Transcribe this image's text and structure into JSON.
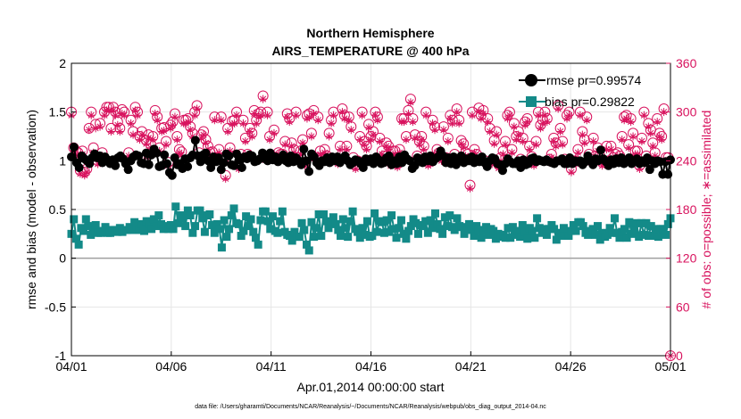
{
  "chart_data": {
    "type": "line",
    "title": "Northern Hemisphere",
    "subtitle": "AIRS_TEMPERATURE @ 400 hPa",
    "xlabel": "Apr.01,2014 00:00:00 start",
    "ylabel_left": "rmse and bias (model - observation)",
    "ylabel_right": "# of obs: o=possible; ∗=assimilated",
    "footnote": "data file: /Users/gharamti/Documents/NCAR/Reanalysis/~/Documents/NCAR/Reanalysis/webpub/obs_diag_output_2014-04.nc",
    "x_ticks": [
      "04/01",
      "04/06",
      "04/11",
      "04/16",
      "04/21",
      "04/26",
      "05/01"
    ],
    "xlim_days": [
      0,
      30
    ],
    "ylim_left": [
      -1,
      2
    ],
    "y_ticks_left": [
      "-1",
      "-0.5",
      "0",
      "0.5",
      "1",
      "1.5",
      "2"
    ],
    "ylim_right": [
      0,
      360
    ],
    "y_ticks_right": [
      "0",
      "60",
      "120",
      "180",
      "240",
      "300",
      "360"
    ],
    "grid": true,
    "legend_position": "top-right",
    "colors": {
      "rmse": "#000000",
      "bias": "#138a88",
      "obs": "#d8135e",
      "zero_line": "#a0a0a0"
    },
    "series": [
      {
        "name": "rmse pr=0.99574",
        "axis": "left",
        "marker": "filled-circle",
        "values": [
          1.04,
          1.14,
          0.98,
          0.93,
          1.05,
          1.02,
          1.0,
          0.97,
          1.03,
          1.07,
          1.03,
          1.05,
          0.98,
          1.04,
          1.01,
          0.97,
          1.01,
          0.95,
          1.03,
          1.05,
          1.02,
          0.97,
          0.91,
          1.0,
          1.04,
          1.06,
          1.05,
          0.98,
          0.97,
          1.08,
          0.96,
          1.06,
          1.12,
          1.08,
          0.94,
          0.95,
          1.06,
          0.97,
          0.88,
          0.85,
          1.03,
          0.96,
          0.97,
          0.92,
          1.02,
          0.94,
          1.03,
          1.06,
          1.21,
          1.05,
          0.99,
          1.06,
          1.08,
          1.0,
          0.93,
          1.04,
          0.99,
          1.03,
          0.91,
          0.98,
          1.07,
          1.05,
          0.96,
          0.95,
          1.07,
          1.01,
          0.93,
          1.04,
          1.02,
          1.06,
          1.05,
          0.99,
          1.0,
          1.02,
          1.08,
          1.02,
          1.0,
          1.08,
          1.01,
          1.04,
          0.99,
          1.02,
          1.06,
          1.0,
          0.98,
          1.05,
          0.99,
          1.03,
          1.0,
          0.96,
          1.12,
          1.0,
          0.89,
          1.07,
          1.04,
          0.98,
          0.95,
          1.0,
          0.99,
          1.03,
          0.98,
          1.04,
          1.0,
          1.04,
          0.98,
          1.02,
          1.05,
          1.0,
          0.96,
          0.98,
          1.01,
          1.0,
          0.97,
          0.93,
          1.02,
          0.99,
          1.02,
          0.97,
          1.04,
          1.01,
          0.97,
          0.98,
          1.03,
          1.05,
          0.96,
          1.0,
          0.97,
          1.04,
          0.98,
          1.06,
          1.02,
          1.0,
          0.92,
          0.95,
          1.03,
          1.02,
          0.98,
          1.04,
          1.0,
          1.05,
          0.99,
          1.02,
          1.04,
          1.1,
          1.05,
          0.98,
          1.03,
          0.97,
          1.04,
          0.96,
          1.0,
          1.05,
          0.98,
          1.02,
          1.0,
          1.04,
          0.98,
          1.02,
          0.99,
          1.04,
          0.98,
          0.94,
          1.0,
          1.03,
          1.02,
          0.97,
          0.96,
          0.9,
          0.97,
          1.02,
          0.99,
          0.97,
          0.97,
          1.0,
          0.93,
          1.01,
          0.96,
          0.97,
          1.02,
          1.03,
          0.99,
          1.01,
          1.0,
          0.99,
          1.01,
          0.99,
          0.98,
          0.97,
          1.0,
          1.0,
          1.02,
          0.97,
          0.97,
          1.03,
          0.97,
          1.0,
          0.99,
          1.0,
          0.96,
          0.99,
          1.05,
          1.0,
          0.96,
          1.02,
          1.0,
          1.11,
          1.02,
          0.99,
          0.95,
          1.01,
          0.97,
          1.02,
          0.98,
          1.03,
          0.97,
          0.99,
          1.03,
          0.97,
          1.0,
          1.02,
          0.97,
          1.0,
          0.98,
          1.03,
          0.91,
          1.0,
          0.97,
          1.0,
          0.99,
          0.86,
          0.99,
          0.86,
          1.01
        ]
      },
      {
        "name": "bias pr=0.29822",
        "axis": "left",
        "marker": "filled-square",
        "values": [
          0.25,
          0.4,
          0.2,
          0.14,
          0.31,
          0.28,
          0.4,
          0.33,
          0.24,
          0.28,
          0.34,
          0.26,
          0.26,
          0.28,
          0.32,
          0.26,
          0.26,
          0.29,
          0.29,
          0.27,
          0.31,
          0.27,
          0.29,
          0.29,
          0.32,
          0.29,
          0.37,
          0.33,
          0.29,
          0.35,
          0.28,
          0.38,
          0.35,
          0.3,
          0.4,
          0.33,
          0.44,
          0.35,
          0.3,
          0.33,
          0.3,
          0.34,
          0.3,
          0.53,
          0.36,
          0.44,
          0.41,
          0.33,
          0.49,
          0.44,
          0.26,
          0.33,
          0.49,
          0.49,
          0.41,
          0.27,
          0.44,
          0.45,
          0.34,
          0.26,
          0.35,
          0.3,
          0.11,
          0.39,
          0.22,
          0.3,
          0.44,
          0.51,
          0.36,
          0.35,
          0.23,
          0.28,
          0.43,
          0.33,
          0.4,
          0.27,
          0.21,
          0.14,
          0.39,
          0.48,
          0.48,
          0.38,
          0.3,
          0.43,
          0.28,
          0.26,
          0.38,
          0.48,
          0.27,
          0.24,
          0.23,
          0.18,
          0.27,
          0.22,
          0.22,
          0.36,
          0.29,
          0.14,
          0.08,
          0.37,
          0.22,
          0.31,
          0.45,
          0.23,
          0.45,
          0.38,
          0.31,
          0.37,
          0.42,
          0.35,
          0.29,
          0.23,
          0.4,
          0.31,
          0.22,
          0.38,
          0.48,
          0.3,
          0.27,
          0.21,
          0.31,
          0.24,
          0.38,
          0.22,
          0.23,
          0.46,
          0.27,
          0.38,
          0.37,
          0.26,
          0.39,
          0.27,
          0.44,
          0.3,
          0.21,
          0.31,
          0.39,
          0.25,
          0.2,
          0.28,
          0.33,
          0.4,
          0.36,
          0.25,
          0.34,
          0.33,
          0.38,
          0.26,
          0.39,
          0.31,
          0.46,
          0.35,
          0.3,
          0.25,
          0.42,
          0.33,
          0.44,
          0.32,
          0.29,
          0.41,
          0.33,
          0.32,
          0.25,
          0.29,
          0.35,
          0.3,
          0.23,
          0.33,
          0.29,
          0.21,
          0.29,
          0.32,
          0.24,
          0.3,
          0.28,
          0.2,
          0.25,
          0.22,
          0.24,
          0.21,
          0.31,
          0.21,
          0.32,
          0.24,
          0.28,
          0.22,
          0.34,
          0.27,
          0.2,
          0.31,
          0.28,
          0.21,
          0.41,
          0.31,
          0.26,
          0.3,
          0.24,
          0.3,
          0.34,
          0.3,
          0.19,
          0.23,
          0.26,
          0.31,
          0.23,
          0.23,
          0.28,
          0.34,
          0.28,
          0.37,
          0.37,
          0.33,
          0.26,
          0.24,
          0.28,
          0.3,
          0.24,
          0.33,
          0.19,
          0.26,
          0.22,
          0.24,
          0.31,
          0.26,
          0.41,
          0.26,
          0.21,
          0.27,
          0.3,
          0.21,
          0.37,
          0.25,
          0.29,
          0.36,
          0.22,
          0.36,
          0.24,
          0.36,
          0.23,
          0.33,
          0.23,
          0.3,
          0.22,
          0.3,
          0.3,
          0.24,
          0.35,
          0.41
        ]
      },
      {
        "name": "possible",
        "axis": "right",
        "marker": "open-circle",
        "values": [
          300,
          256,
          252,
          250,
          228,
          252,
          226,
          230,
          280,
          300,
          256,
          285,
          240,
          286,
          250,
          300,
          306,
          306,
          280,
          306,
          300,
          288,
          280,
          303,
          300,
          240,
          250,
          290,
          276,
          306,
          300,
          270,
          276,
          244,
          265,
          272,
          260,
          270,
          302,
          294,
          256,
          280,
          281,
          264,
          238,
          284,
          288,
          298,
          270,
          254,
          251,
          290,
          290,
          292,
          282,
          274,
          300,
          308,
          250,
          272,
          276,
          266,
          258,
          250,
          251,
          294,
          244,
          254,
          294,
          242,
          222,
          280,
          256,
          289,
          290,
          300,
          234,
          248,
          290,
          268,
          248,
          280,
          274,
          302,
          290,
          298,
          300,
          320,
          245,
          300,
          270,
          246,
          278,
          244,
          250,
          248,
          248,
          264,
          298,
          292,
          262,
          254,
          300,
          244,
          252,
          266,
          238,
          296,
          298,
          274,
          302,
          244,
          294,
          252,
          242,
          254,
          246,
          274,
          290,
          300,
          242,
          240,
          258,
          304,
          296,
          258,
          294,
          282,
          244,
          234,
          240,
          270,
          300,
          264,
          258,
          285,
          270,
          276,
          300,
          294,
          268,
          252,
          246,
          262,
          258,
          238,
          252,
          252,
          236,
          254,
          292,
          292,
          270,
          302,
          316,
          292,
          272,
          246,
          264,
          270,
          258,
          300,
          238,
          240,
          290,
          282,
          254,
          250,
          244,
          282,
          244,
          268,
          296,
          290,
          248,
          304,
          290,
          265,
          261,
          250,
          248,
          210,
          300,
          254,
          248,
          305,
          296,
          302,
          240,
          292,
          280,
          240,
          265,
          276,
          235,
          244,
          252,
          264,
          296,
          300,
          254,
          286,
          270,
          276,
          242,
          268,
          288,
          292,
          258,
          245,
          238,
          264,
          300,
          284,
          290,
          300,
          292,
          242,
          248,
          268,
          262,
          308,
          280,
          264,
          242,
          296,
          300,
          230,
          240,
          240,
          254,
          300,
          276,
          266,
          294,
          248,
          242,
          268,
          246,
          256,
          246,
          238,
          240,
          258,
          240,
          258,
          244,
          248,
          250,
          246,
          270,
          294,
          296,
          260,
          292,
          274,
          252,
          252,
          234,
          268,
          300,
          246,
          286,
          278,
          262,
          250,
          292,
          274,
          270,
          304,
          244,
          244,
          0
        ]
      },
      {
        "name": "assimilated",
        "axis": "right",
        "marker": "asterisk",
        "values": [
          296,
          252,
          248,
          246,
          224,
          248,
          222,
          226,
          278,
          296,
          250,
          280,
          236,
          282,
          246,
          296,
          302,
          302,
          276,
          302,
          296,
          284,
          276,
          298,
          296,
          236,
          246,
          286,
          272,
          302,
          296,
          266,
          272,
          240,
          261,
          268,
          256,
          266,
          298,
          290,
          252,
          276,
          277,
          260,
          234,
          280,
          284,
          294,
          266,
          250,
          247,
          286,
          286,
          288,
          278,
          270,
          296,
          304,
          246,
          268,
          272,
          262,
          254,
          246,
          247,
          290,
          240,
          250,
          290,
          238,
          218,
          276,
          252,
          285,
          286,
          296,
          230,
          244,
          286,
          264,
          244,
          276,
          270,
          298,
          286,
          294,
          296,
          316,
          241,
          296,
          266,
          242,
          274,
          240,
          246,
          244,
          244,
          260,
          294,
          288,
          258,
          250,
          296,
          240,
          248,
          262,
          234,
          292,
          294,
          270,
          298,
          240,
          290,
          248,
          238,
          250,
          242,
          270,
          286,
          296,
          238,
          236,
          254,
          300,
          292,
          254,
          290,
          278,
          240,
          230,
          236,
          266,
          296,
          260,
          254,
          281,
          266,
          272,
          296,
          290,
          264,
          248,
          242,
          258,
          254,
          234,
          248,
          248,
          232,
          250,
          288,
          288,
          266,
          298,
          312,
          288,
          268,
          242,
          260,
          266,
          254,
          296,
          234,
          236,
          286,
          278,
          250,
          246,
          240,
          278,
          240,
          264,
          292,
          286,
          244,
          300,
          286,
          261,
          257,
          246,
          244,
          206,
          296,
          250,
          244,
          301,
          292,
          298,
          236,
          288,
          276,
          236,
          261,
          272,
          231,
          240,
          248,
          260,
          292,
          296,
          250,
          282,
          266,
          272,
          238,
          264,
          284,
          288,
          254,
          241,
          234,
          260,
          296,
          280,
          286,
          296,
          288,
          238,
          244,
          264,
          258,
          304,
          276,
          260,
          238,
          292,
          296,
          226,
          236,
          236,
          250,
          296,
          272,
          262,
          290,
          244,
          238,
          264,
          242,
          252,
          242,
          234,
          236,
          254,
          236,
          254,
          240,
          244,
          246,
          242,
          266,
          290,
          292,
          256,
          288,
          270,
          248,
          248,
          230,
          264,
          296,
          242,
          282,
          274,
          258,
          246,
          288,
          270,
          266,
          300,
          240,
          240,
          0
        ]
      }
    ]
  }
}
